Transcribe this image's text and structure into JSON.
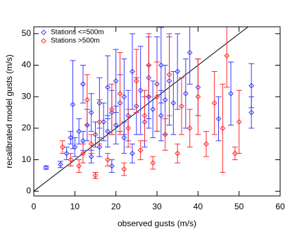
{
  "chart_data": {
    "type": "scatter",
    "x_label": "observed gusts (m/s)",
    "y_label": "recalibrated model gusts (m/s)",
    "xlim": [
      0,
      60
    ],
    "ylim": [
      -1.5,
      52.2
    ],
    "xticks": [
      0,
      10,
      20,
      30,
      40,
      50,
      60
    ],
    "yticks": [
      0,
      10,
      20,
      30,
      40,
      50
    ],
    "legend": "top-left",
    "series": [
      {
        "name": "Stations <=500m",
        "color": "#3a3aff",
        "x": [
          3,
          6.5,
          8,
          9,
          9.5,
          10,
          11,
          12,
          12,
          13,
          14,
          14,
          15,
          16,
          16,
          17,
          18,
          18,
          19,
          19,
          20,
          20,
          21,
          22,
          22,
          23,
          24,
          24,
          25,
          26,
          27,
          28,
          28,
          29,
          30,
          31,
          31,
          32,
          33,
          34,
          35,
          37,
          38,
          40,
          45,
          48,
          53,
          53
        ],
        "values": [
          7.5,
          8.5,
          12,
          17,
          27.5,
          14,
          19,
          34,
          16,
          21,
          11,
          25,
          18,
          14,
          28,
          22,
          19,
          33,
          8,
          25,
          21,
          35,
          28,
          17,
          30,
          24,
          38,
          12,
          27,
          32,
          22,
          36,
          30,
          26,
          34,
          40,
          24,
          29,
          35,
          28,
          38,
          31,
          44,
          33,
          23,
          31,
          33.5,
          25
        ],
        "errors": [
          0.5,
          1,
          2,
          2,
          14,
          3,
          4,
          6,
          3,
          5,
          2,
          6,
          4,
          3,
          8,
          6,
          5,
          10,
          2,
          7,
          6,
          10,
          9,
          5,
          12,
          8,
          12,
          3,
          9,
          14,
          8,
          13,
          10,
          9,
          15,
          12,
          8,
          11,
          14,
          10,
          12,
          11,
          10,
          9,
          7,
          10,
          7,
          5
        ]
      },
      {
        "name": "Stations >500m",
        "color": "#ff2a2a",
        "x": [
          7,
          9,
          11,
          12,
          13,
          14,
          15,
          16,
          18,
          19,
          21,
          22,
          23,
          25,
          26,
          27,
          28,
          29,
          30,
          32,
          33,
          35,
          36,
          38,
          40,
          42,
          44,
          46,
          47,
          49,
          50
        ],
        "values": [
          14,
          10,
          8,
          12,
          29,
          15,
          5,
          22,
          10,
          26,
          31,
          7,
          20,
          35,
          13,
          24,
          40,
          9,
          30,
          18,
          37,
          12,
          27,
          20,
          30,
          15,
          28,
          20,
          43,
          12,
          22
        ],
        "errors": [
          2,
          2,
          2,
          3,
          8,
          3,
          1,
          7,
          2,
          8,
          13,
          2,
          6,
          10,
          3,
          8,
          10,
          2,
          11,
          5,
          13,
          3,
          9,
          6,
          12,
          4,
          10,
          14,
          10,
          2,
          10
        ]
      }
    ]
  }
}
